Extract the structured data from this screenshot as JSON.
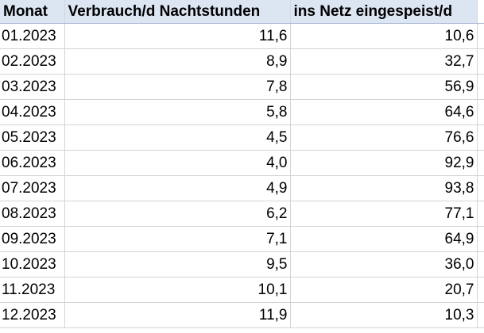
{
  "table": {
    "headers": [
      "Monat",
      "Verbrauch/d Nachtstunden",
      "ins Netz eingespeist/d"
    ],
    "rows": [
      [
        "01.2023",
        "11,6",
        "10,6"
      ],
      [
        "02.2023",
        "8,9",
        "32,7"
      ],
      [
        "03.2023",
        "7,8",
        "56,9"
      ],
      [
        "04.2023",
        "5,8",
        "64,6"
      ],
      [
        "05.2023",
        "4,5",
        "76,6"
      ],
      [
        "06.2023",
        "4,0",
        "92,9"
      ],
      [
        "07.2023",
        "4,9",
        "93,8"
      ],
      [
        "08.2023",
        "6,2",
        "77,1"
      ],
      [
        "09.2023",
        "7,1",
        "64,9"
      ],
      [
        "10.2023",
        "9,5",
        "36,0"
      ],
      [
        "11.2023",
        "10,1",
        "20,7"
      ],
      [
        "12.2023",
        "11,9",
        "10,3"
      ]
    ]
  }
}
